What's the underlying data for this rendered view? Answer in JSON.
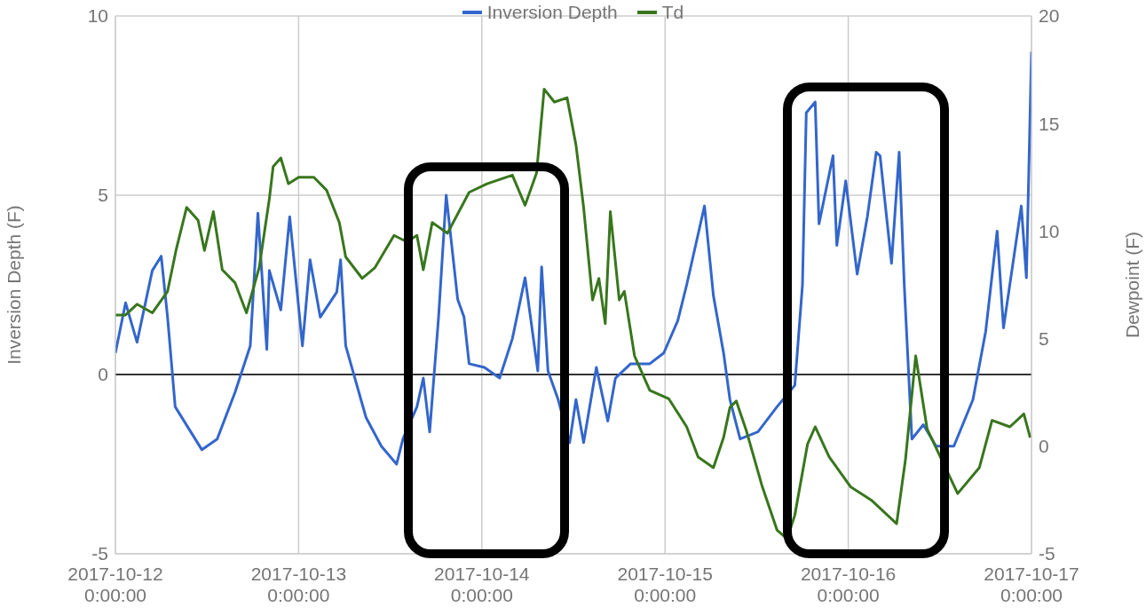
{
  "chart_data": {
    "type": "line",
    "ylabel": "Inversion Depth (F)",
    "y2label": "Dewpoint (F)",
    "xlim": [
      "2017-10-12T00:00",
      "2017-10-17T00:00"
    ],
    "xticks": [
      {
        "value": "2017-10-12T00:00",
        "label": "2017-10-12 0:00:00"
      },
      {
        "value": "2017-10-13T00:00",
        "label": "2017-10-13 0:00:00"
      },
      {
        "value": "2017-10-14T00:00",
        "label": "2017-10-14 0:00:00"
      },
      {
        "value": "2017-10-15T00:00",
        "label": "2017-10-15 0:00:00"
      },
      {
        "value": "2017-10-16T00:00",
        "label": "2017-10-16 0:00:00"
      },
      {
        "value": "2017-10-17T00:00",
        "label": "2017-10-17 0:00:00"
      }
    ],
    "ylim": [
      -5,
      10
    ],
    "yticks": [
      -5,
      0,
      5,
      10
    ],
    "y2lim": [
      -5,
      20
    ],
    "y2ticks": [
      -5,
      0,
      5,
      10,
      15,
      20
    ],
    "grid": true,
    "legend": "top",
    "marker": "none",
    "line_style": "solid",
    "ref_lines": [
      {
        "axis": "y",
        "value": 0,
        "color": "#333333"
      }
    ],
    "series": [
      {
        "name": "Inversion Depth",
        "color": "#3366cc",
        "x": [
          "2017-10-12T00:00",
          "2017-10-12T01:20",
          "2017-10-12T02:50",
          "2017-10-12T04:50",
          "2017-10-12T06:00",
          "2017-10-12T06:50",
          "2017-10-12T07:50",
          "2017-10-12T11:20",
          "2017-10-12T13:20",
          "2017-10-12T15:40",
          "2017-10-12T17:40",
          "2017-10-12T18:40",
          "2017-10-12T19:50",
          "2017-10-12T20:10",
          "2017-10-12T21:40",
          "2017-10-12T22:50",
          "2017-10-13T00:30",
          "2017-10-13T01:30",
          "2017-10-13T02:50",
          "2017-10-13T05:00",
          "2017-10-13T05:30",
          "2017-10-13T06:10",
          "2017-10-13T08:50",
          "2017-10-13T10:50",
          "2017-10-13T12:50",
          "2017-10-13T13:40",
          "2017-10-13T15:30",
          "2017-10-13T16:20",
          "2017-10-13T17:10",
          "2017-10-13T18:20",
          "2017-10-13T19:20",
          "2017-10-13T20:50",
          "2017-10-13T21:40",
          "2017-10-13T22:20",
          "2017-10-14T00:20",
          "2017-10-14T02:20",
          "2017-10-14T04:00",
          "2017-10-14T05:40",
          "2017-10-14T07:20",
          "2017-10-14T07:50",
          "2017-10-14T08:40",
          "2017-10-14T10:00",
          "2017-10-14T11:30",
          "2017-10-14T12:20",
          "2017-10-14T13:20",
          "2017-10-14T15:00",
          "2017-10-14T16:30",
          "2017-10-14T17:30",
          "2017-10-14T19:30",
          "2017-10-14T22:00",
          "2017-10-14T23:50",
          "2017-10-15T01:40",
          "2017-10-15T02:50",
          "2017-10-15T05:10",
          "2017-10-15T06:20",
          "2017-10-15T07:40",
          "2017-10-15T08:30",
          "2017-10-15T09:50",
          "2017-10-15T12:10",
          "2017-10-15T14:40",
          "2017-10-15T17:00",
          "2017-10-15T18:00",
          "2017-10-15T18:30",
          "2017-10-15T19:40",
          "2017-10-15T20:10",
          "2017-10-15T22:00",
          "2017-10-15T22:30",
          "2017-10-15T23:40",
          "2017-10-16T01:10",
          "2017-10-16T02:30",
          "2017-10-16T03:40",
          "2017-10-16T04:10",
          "2017-10-16T05:40",
          "2017-10-16T06:40",
          "2017-10-16T07:20",
          "2017-10-16T08:20",
          "2017-10-16T09:50",
          "2017-10-16T11:30",
          "2017-10-16T13:50",
          "2017-10-16T16:20",
          "2017-10-16T18:00",
          "2017-10-16T19:30",
          "2017-10-16T20:20",
          "2017-10-16T22:40",
          "2017-10-16T23:20",
          "2017-10-17T00:00"
        ],
        "values": [
          0.6,
          2.0,
          0.9,
          2.9,
          3.3,
          1.6,
          -0.9,
          -2.1,
          -1.8,
          -0.5,
          0.8,
          4.5,
          0.7,
          2.9,
          1.8,
          4.4,
          0.8,
          3.2,
          1.6,
          2.3,
          3.2,
          0.8,
          -1.2,
          -2.0,
          -2.5,
          -1.8,
          -0.9,
          -0.1,
          -1.6,
          1.6,
          5.0,
          2.1,
          1.6,
          0.3,
          0.2,
          -0.1,
          1.0,
          2.7,
          0.1,
          3.0,
          0.1,
          -0.7,
          -1.9,
          -0.7,
          -1.9,
          0.2,
          -1.3,
          -0.1,
          0.3,
          0.3,
          0.6,
          1.5,
          2.5,
          4.7,
          2.2,
          0.6,
          -0.7,
          -1.8,
          -1.6,
          -0.9,
          -0.3,
          2.5,
          7.3,
          7.6,
          4.2,
          6.1,
          3.6,
          5.4,
          2.8,
          4.4,
          6.2,
          6.1,
          3.1,
          6.2,
          2.5,
          -1.8,
          -1.4,
          -2.0,
          -2.0,
          -0.7,
          1.2,
          4.0,
          1.3,
          4.7,
          2.7,
          9.0
        ]
      },
      {
        "name": "Td",
        "color": "#38761d",
        "axis": "y2",
        "x": [
          "2017-10-12T00:00",
          "2017-10-12T01:20",
          "2017-10-12T02:50",
          "2017-10-12T04:50",
          "2017-10-12T06:50",
          "2017-10-12T08:00",
          "2017-10-12T09:20",
          "2017-10-12T10:50",
          "2017-10-12T11:40",
          "2017-10-12T12:50",
          "2017-10-12T14:00",
          "2017-10-12T15:40",
          "2017-10-12T17:10",
          "2017-10-12T18:50",
          "2017-10-12T20:10",
          "2017-10-12T20:40",
          "2017-10-12T21:40",
          "2017-10-12T22:40",
          "2017-10-13T00:00",
          "2017-10-13T02:00",
          "2017-10-13T03:40",
          "2017-10-13T05:20",
          "2017-10-13T06:10",
          "2017-10-13T08:20",
          "2017-10-13T10:00",
          "2017-10-13T12:30",
          "2017-10-13T14:10",
          "2017-10-13T15:30",
          "2017-10-13T16:20",
          "2017-10-13T17:30",
          "2017-10-13T19:30",
          "2017-10-13T22:20",
          "2017-10-14T00:40",
          "2017-10-14T04:00",
          "2017-10-14T05:40",
          "2017-10-14T07:10",
          "2017-10-14T08:10",
          "2017-10-14T09:30",
          "2017-10-14T11:10",
          "2017-10-14T12:20",
          "2017-10-14T13:20",
          "2017-10-14T14:30",
          "2017-10-14T15:20",
          "2017-10-14T16:10",
          "2017-10-14T16:50",
          "2017-10-14T18:00",
          "2017-10-14T18:40",
          "2017-10-14T20:00",
          "2017-10-14T22:00",
          "2017-10-15T00:30",
          "2017-10-15T02:50",
          "2017-10-15T04:20",
          "2017-10-15T06:20",
          "2017-10-15T07:40",
          "2017-10-15T08:30",
          "2017-10-15T09:20",
          "2017-10-15T10:40",
          "2017-10-15T12:40",
          "2017-10-15T14:40",
          "2017-10-15T16:00",
          "2017-10-15T17:00",
          "2017-10-15T18:40",
          "2017-10-15T19:40",
          "2017-10-15T21:30",
          "2017-10-16T00:20",
          "2017-10-16T03:00",
          "2017-10-16T06:20",
          "2017-10-16T07:30",
          "2017-10-16T08:50",
          "2017-10-16T10:20",
          "2017-10-16T12:20",
          "2017-10-16T14:20",
          "2017-10-16T17:10",
          "2017-10-16T18:50",
          "2017-10-16T21:10",
          "2017-10-16T23:00",
          "2017-10-16T23:50"
        ],
        "values": [
          6.1,
          6.1,
          6.6,
          6.2,
          7.2,
          9.2,
          11.1,
          10.5,
          9.1,
          10.9,
          8.2,
          7.6,
          6.2,
          8.3,
          11.5,
          13.0,
          13.4,
          12.2,
          12.5,
          12.5,
          11.9,
          10.4,
          8.8,
          7.8,
          8.3,
          9.8,
          9.5,
          9.8,
          8.2,
          10.4,
          9.9,
          11.8,
          12.2,
          12.6,
          11.2,
          12.7,
          16.6,
          16.0,
          16.2,
          14.0,
          11.1,
          6.8,
          7.8,
          5.7,
          10.9,
          6.8,
          7.2,
          4.2,
          2.6,
          2.2,
          0.9,
          -0.5,
          -1.0,
          0.4,
          1.8,
          2.1,
          0.7,
          -1.8,
          -3.9,
          -4.3,
          -3.2,
          0.1,
          0.9,
          -0.5,
          -1.9,
          -2.5,
          -3.6,
          -0.6,
          4.2,
          0.8,
          -0.7,
          -2.2,
          -1.0,
          1.2,
          0.9,
          1.5,
          0.4
        ]
      }
    ]
  }
}
